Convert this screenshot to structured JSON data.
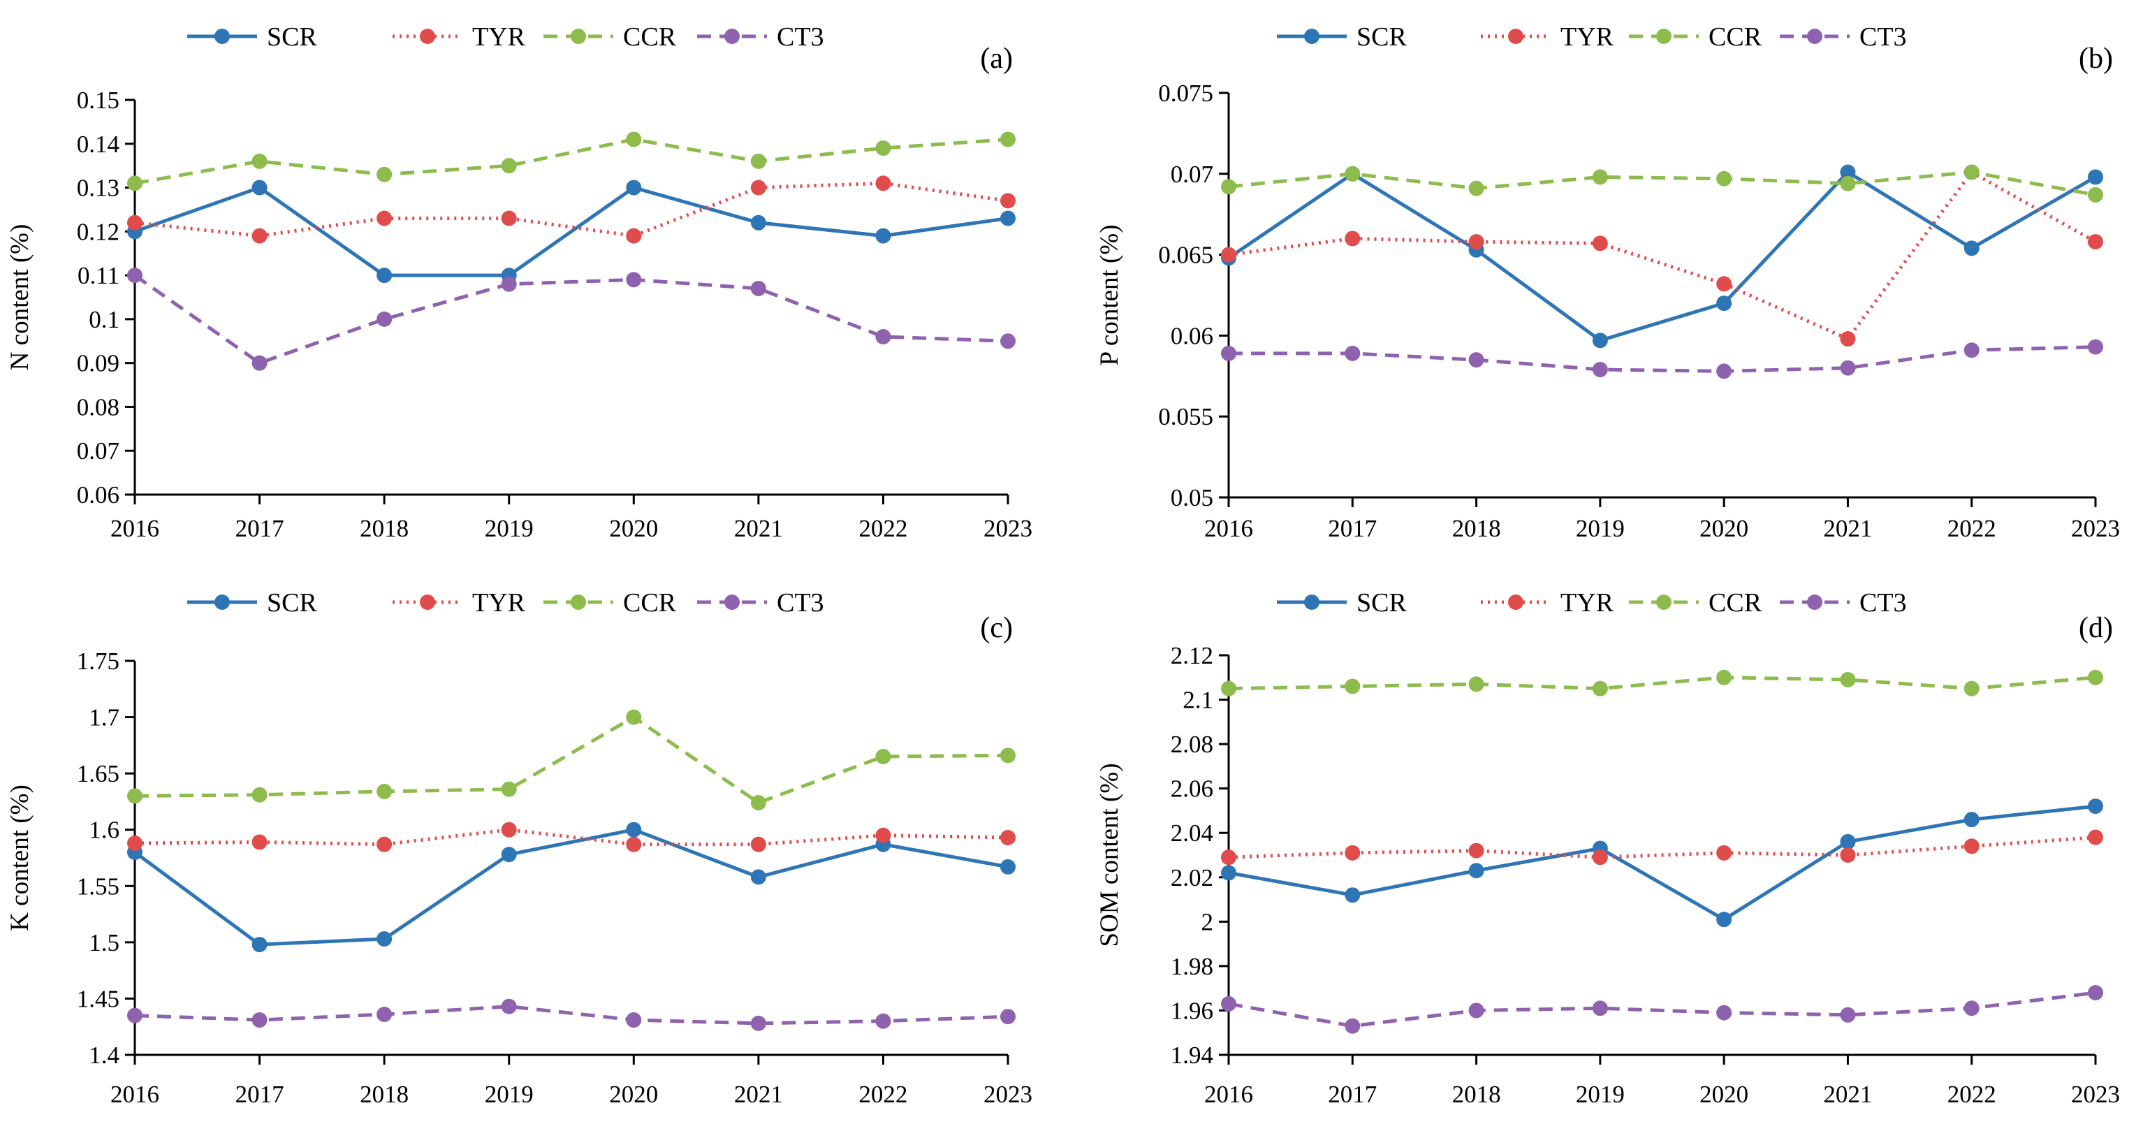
{
  "legend": [
    {
      "name": "SCR",
      "color": "#2E75B6",
      "dash": "solid"
    },
    {
      "name": "TYR",
      "color": "#E04B4B",
      "dash": "dotted"
    },
    {
      "name": "CCR",
      "color": "#8DBB4C",
      "dash": "dashed"
    },
    {
      "name": "CT3",
      "color": "#8E62AE",
      "dash": "dashed"
    }
  ],
  "chart_data": [
    {
      "type": "line",
      "panel_label": "(a)",
      "title": "",
      "xlabel": "",
      "ylabel": "N content (%)",
      "categories": [
        "2016",
        "2017",
        "2018",
        "2019",
        "2020",
        "2021",
        "2022",
        "2023"
      ],
      "ylim": [
        0.06,
        0.15
      ],
      "yticks": [
        0.06,
        0.07,
        0.08,
        0.09,
        0.1,
        0.11,
        0.12,
        0.13,
        0.14,
        0.15
      ],
      "ytick_labels": [
        "0.06",
        "0.07",
        "0.08",
        "0.09",
        "0.1",
        "0.11",
        "0.12",
        "0.13",
        "0.14",
        "0.15"
      ],
      "series": [
        {
          "name": "SCR",
          "values": [
            0.12,
            0.13,
            0.11,
            0.11,
            0.13,
            0.122,
            0.119,
            0.123
          ]
        },
        {
          "name": "TYR",
          "values": [
            0.122,
            0.119,
            0.123,
            0.123,
            0.119,
            0.13,
            0.131,
            0.127
          ]
        },
        {
          "name": "CCR",
          "values": [
            0.131,
            0.136,
            0.133,
            0.135,
            0.141,
            0.136,
            0.139,
            0.141
          ]
        },
        {
          "name": "CT3",
          "values": [
            0.11,
            0.09,
            0.1,
            0.108,
            0.109,
            0.107,
            0.096,
            0.095
          ]
        }
      ]
    },
    {
      "type": "line",
      "panel_label": "(b)",
      "title": "",
      "xlabel": "",
      "ylabel": "P content (%)",
      "categories": [
        "2016",
        "2017",
        "2018",
        "2019",
        "2020",
        "2021",
        "2022",
        "2023"
      ],
      "ylim": [
        0.05,
        0.075
      ],
      "yticks": [
        0.05,
        0.055,
        0.06,
        0.065,
        0.07,
        0.075
      ],
      "ytick_labels": [
        "0.05",
        "0.055",
        "0.06",
        "0.065",
        "0.07",
        "0.075"
      ],
      "series": [
        {
          "name": "SCR",
          "values": [
            0.0648,
            0.07,
            0.0653,
            0.0597,
            0.062,
            0.0701,
            0.0654,
            0.0698
          ]
        },
        {
          "name": "TYR",
          "values": [
            0.065,
            0.066,
            0.0658,
            0.0657,
            0.0632,
            0.0598,
            0.0701,
            0.0658
          ]
        },
        {
          "name": "CCR",
          "values": [
            0.0692,
            0.07,
            0.0691,
            0.0698,
            0.0697,
            0.0694,
            0.0701,
            0.0687
          ]
        },
        {
          "name": "CT3",
          "values": [
            0.0589,
            0.0589,
            0.0585,
            0.0579,
            0.0578,
            0.058,
            0.0591,
            0.0593
          ]
        }
      ]
    },
    {
      "type": "line",
      "panel_label": "(c)",
      "title": "",
      "xlabel": "",
      "ylabel": "K content (%)",
      "categories": [
        "2016",
        "2017",
        "2018",
        "2019",
        "2020",
        "2021",
        "2022",
        "2023"
      ],
      "ylim": [
        1.4,
        1.75
      ],
      "yticks": [
        1.4,
        1.45,
        1.5,
        1.55,
        1.6,
        1.65,
        1.7,
        1.75
      ],
      "ytick_labels": [
        "1.4",
        "1.45",
        "1.5",
        "1.55",
        "1.6",
        "1.65",
        "1.7",
        "1.75"
      ],
      "series": [
        {
          "name": "SCR",
          "values": [
            1.58,
            1.498,
            1.503,
            1.578,
            1.6,
            1.558,
            1.587,
            1.567
          ]
        },
        {
          "name": "TYR",
          "values": [
            1.588,
            1.589,
            1.587,
            1.6,
            1.587,
            1.587,
            1.595,
            1.593
          ]
        },
        {
          "name": "CCR",
          "values": [
            1.63,
            1.631,
            1.634,
            1.636,
            1.7,
            1.624,
            1.665,
            1.666
          ]
        },
        {
          "name": "CT3",
          "values": [
            1.435,
            1.431,
            1.436,
            1.443,
            1.431,
            1.428,
            1.43,
            1.434
          ]
        }
      ]
    },
    {
      "type": "line",
      "panel_label": "(d)",
      "title": "",
      "xlabel": "",
      "ylabel": "SOM content (%)",
      "categories": [
        "2016",
        "2017",
        "2018",
        "2019",
        "2020",
        "2021",
        "2022",
        "2023"
      ],
      "ylim": [
        1.94,
        2.12
      ],
      "yticks": [
        1.94,
        1.96,
        1.98,
        2.0,
        2.02,
        2.04,
        2.06,
        2.08,
        2.1,
        2.12
      ],
      "ytick_labels": [
        "1.94",
        "1.96",
        "1.98",
        "2",
        "2.02",
        "2.04",
        "2.06",
        "2.08",
        "2.1",
        "2.12"
      ],
      "series": [
        {
          "name": "SCR",
          "values": [
            2.022,
            2.012,
            2.023,
            2.033,
            2.001,
            2.036,
            2.046,
            2.052
          ]
        },
        {
          "name": "TYR",
          "values": [
            2.029,
            2.031,
            2.032,
            2.029,
            2.031,
            2.03,
            2.034,
            2.038
          ]
        },
        {
          "name": "CCR",
          "values": [
            2.105,
            2.106,
            2.107,
            2.105,
            2.11,
            2.109,
            2.105,
            2.11
          ]
        },
        {
          "name": "CT3",
          "values": [
            1.963,
            1.953,
            1.96,
            1.961,
            1.959,
            1.958,
            1.961,
            1.968
          ]
        }
      ]
    }
  ]
}
